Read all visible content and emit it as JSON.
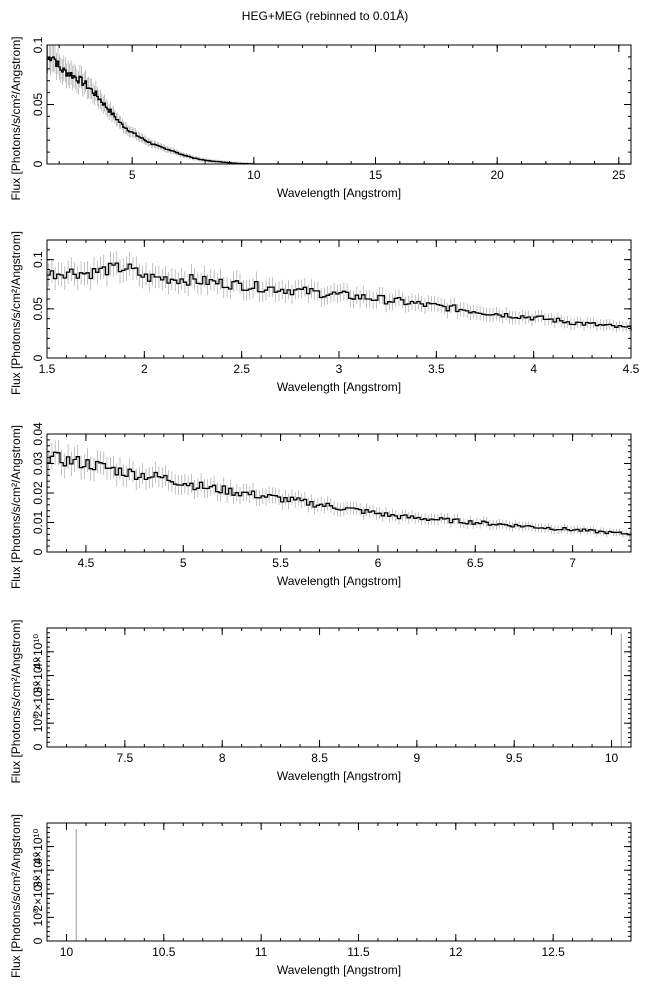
{
  "figure": {
    "title": "HEG+MEG (rebinned to 0.01Å)",
    "colors": {
      "data": "#000000",
      "error": "#9a9a9a",
      "frame": "#000000"
    }
  },
  "chart_data": [
    {
      "type": "line",
      "xlabel": "Wavelength [Angstrom]",
      "ylabel": "Flux [Photons/s/cm²/Angstrom]",
      "xlim": [
        1.5,
        25.5
      ],
      "ylim": [
        0,
        0.1
      ],
      "xticks": [
        5,
        10,
        15,
        20,
        25
      ],
      "xtick_labels": [
        "5",
        "10",
        "15",
        "20",
        "25"
      ],
      "yticks": [
        0,
        0.05,
        0.1
      ],
      "ytick_labels": [
        "0",
        "0.05",
        "0.1"
      ],
      "series": [
        {
          "x": [
            1.5,
            1.7,
            2.0,
            2.5,
            3.0,
            3.5,
            4.0,
            4.5,
            5.0,
            5.5,
            6.0,
            6.5,
            7.0,
            7.5,
            8.0,
            8.5,
            9.0,
            9.3,
            10,
            15,
            20,
            25.5
          ],
          "y": [
            0.088,
            0.092,
            0.08,
            0.075,
            0.068,
            0.058,
            0.046,
            0.034,
            0.026,
            0.02,
            0.015,
            0.012,
            0.008,
            0.005,
            0.003,
            0.002,
            0.001,
            0.0005,
            0,
            0,
            0,
            0
          ]
        }
      ]
    },
    {
      "type": "line",
      "xlabel": "Wavelength [Angstrom]",
      "ylabel": "Flux [Photons/s/cm²/Angstrom]",
      "xlim": [
        1.5,
        4.5
      ],
      "ylim": [
        0,
        0.12
      ],
      "xticks": [
        1.5,
        2,
        2.5,
        3,
        3.5,
        4,
        4.5
      ],
      "xtick_labels": [
        "1.5",
        "2",
        "2.5",
        "3",
        "3.5",
        "4",
        "4.5"
      ],
      "yticks": [
        0,
        0.05,
        0.1
      ],
      "ytick_labels": [
        "0",
        "0.05",
        "0.1"
      ],
      "series": [
        {
          "x": [
            1.5,
            1.6,
            1.7,
            1.8,
            1.9,
            2.0,
            2.2,
            2.4,
            2.6,
            2.8,
            3.0,
            3.2,
            3.4,
            3.6,
            3.8,
            4.0,
            4.2,
            4.4,
            4.5
          ],
          "y": [
            0.085,
            0.088,
            0.086,
            0.09,
            0.092,
            0.082,
            0.08,
            0.076,
            0.072,
            0.068,
            0.064,
            0.06,
            0.055,
            0.05,
            0.045,
            0.041,
            0.036,
            0.032,
            0.03
          ]
        }
      ]
    },
    {
      "type": "line",
      "xlabel": "Wavelength [Angstrom]",
      "ylabel": "Flux [Photons/s/cm²/Angstrom]",
      "xlim": [
        4.3,
        7.3
      ],
      "ylim": [
        0,
        0.04
      ],
      "xticks": [
        4.5,
        5,
        5.5,
        6,
        6.5,
        7
      ],
      "xtick_labels": [
        "4.5",
        "5",
        "5.5",
        "6",
        "6.5",
        "7"
      ],
      "yticks": [
        0,
        0.01,
        0.02,
        0.03,
        0.04
      ],
      "ytick_labels": [
        "0",
        "0.01",
        "0.02",
        "0.03",
        "0.04"
      ],
      "series": [
        {
          "x": [
            4.3,
            4.5,
            4.7,
            4.9,
            5.1,
            5.3,
            5.5,
            5.7,
            5.9,
            6.1,
            6.3,
            6.5,
            6.7,
            6.9,
            7.1,
            7.3
          ],
          "y": [
            0.032,
            0.03,
            0.027,
            0.025,
            0.022,
            0.02,
            0.018,
            0.016,
            0.014,
            0.012,
            0.011,
            0.01,
            0.009,
            0.008,
            0.007,
            0.006
          ]
        }
      ]
    },
    {
      "type": "line",
      "xlabel": "Wavelength [Angstrom]",
      "ylabel": "Flux [Photons/s/cm²/Angstrom]",
      "xlim": [
        7.1,
        10.1
      ],
      "ylim": [
        0,
        1
      ],
      "xticks": [
        7.5,
        8,
        8.5,
        9,
        9.5,
        10
      ],
      "xtick_labels": [
        "7.5",
        "8",
        "8.5",
        "9",
        "9.5",
        "10"
      ],
      "yticks": [
        0,
        0.2,
        0.4,
        0.6,
        0.8
      ],
      "ytick_labels": [
        "0",
        "10⁰",
        "2×10¹⁰",
        "3×10¹⁰",
        "4×10¹⁰"
      ],
      "spike_x": 10.05,
      "series": []
    },
    {
      "type": "line",
      "xlabel": "Wavelength [Angstrom]",
      "ylabel": "Flux [Photons/s/cm²/Angstrom]",
      "xlim": [
        9.9,
        12.9
      ],
      "ylim": [
        0,
        1
      ],
      "xticks": [
        10,
        10.5,
        11,
        11.5,
        12,
        12.5
      ],
      "xtick_labels": [
        "10",
        "10.5",
        "11",
        "11.5",
        "12",
        "12.5"
      ],
      "yticks": [
        0,
        0.2,
        0.4,
        0.6,
        0.8
      ],
      "ytick_labels": [
        "0",
        "10⁰",
        "2×10¹⁰",
        "3×10¹⁰",
        "4×10¹⁰"
      ],
      "spike_x": 10.05,
      "series": []
    }
  ]
}
